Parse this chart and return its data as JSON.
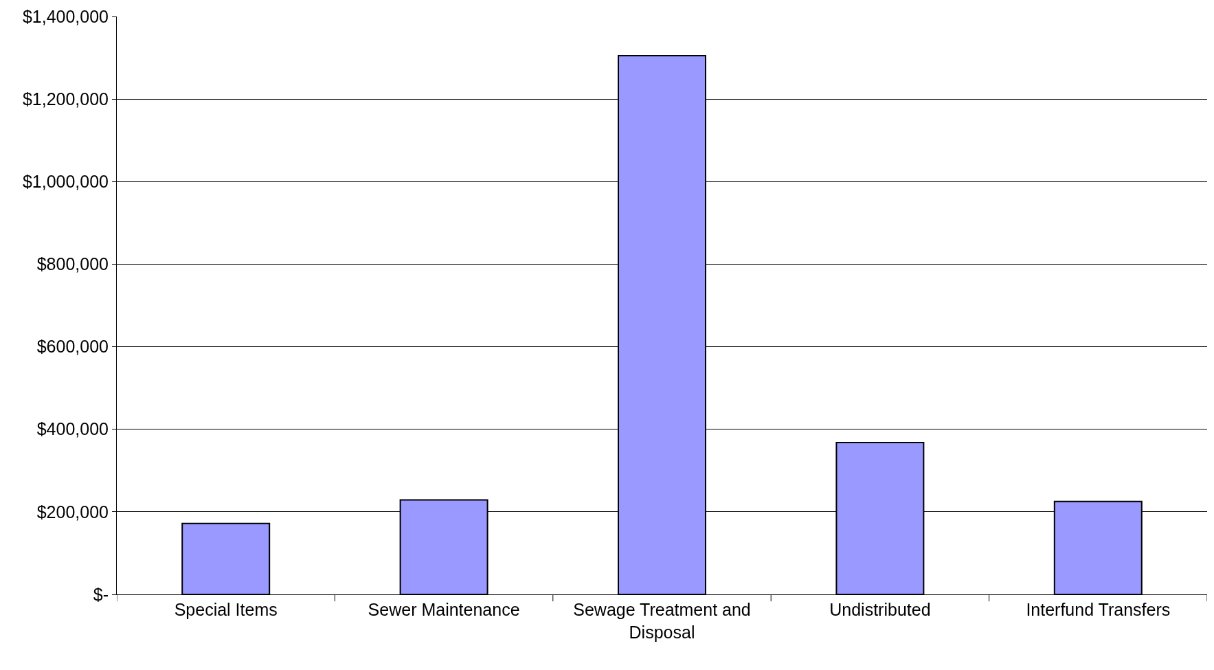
{
  "chart_data": {
    "type": "bar",
    "categories": [
      "Special Items",
      "Sewer Maintenance",
      "Sewage Treatment and Disposal",
      "Undistributed",
      "Interfund Transfers"
    ],
    "values": [
      172000,
      229000,
      1305000,
      368000,
      225000
    ],
    "color": "#9999ff",
    "ylim": [
      0,
      1400000
    ],
    "yticks": [
      {
        "value": 0,
        "label": "$-"
      },
      {
        "value": 200000,
        "label": "$200,000"
      },
      {
        "value": 400000,
        "label": "$400,000"
      },
      {
        "value": 600000,
        "label": "$600,000"
      },
      {
        "value": 800000,
        "label": "$800,000"
      },
      {
        "value": 1000000,
        "label": "$1,000,000"
      },
      {
        "value": 1200000,
        "label": "$1,200,000"
      },
      {
        "value": 1400000,
        "label": "$1,400,000"
      }
    ],
    "grid": "y"
  }
}
